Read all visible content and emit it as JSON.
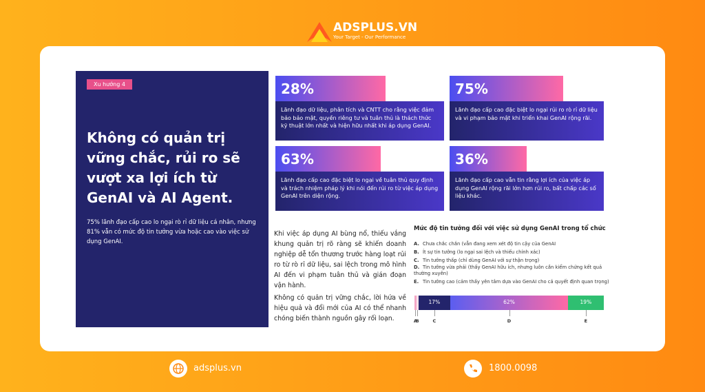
{
  "logo": {
    "brand": "ADSPLUS.VN",
    "tagline": "Your Target - Our Performance"
  },
  "panel": {
    "tag": "Xu hướng 4",
    "title": "Không có quản trị vững chắc, rủi ro sẽ vượt xa lợi ích từ GenAI và AI Agent.",
    "text": "75% lãnh đạo cấp cao lo ngại rò rỉ dữ liệu cá nhân, nhưng 81% vẫn có mức độ tin tưởng vừa hoặc cao vào việc sử dụng GenAI."
  },
  "stats": [
    {
      "number": "28%",
      "text": "Lãnh đạo dữ liệu, phân tích và CNTT cho rằng việc đảm bảo bảo mật, quyền riêng tư và tuân thủ là thách thức kỹ thuật lớn nhất và hiện hữu nhất khi áp dụng GenAI."
    },
    {
      "number": "75%",
      "text": "Lãnh đạo cấp cao đặc biệt lo ngại rủi ro rò rỉ dữ liệu và vi phạm bảo mật khi triển khai GenAI rộng rãi."
    },
    {
      "number": "63%",
      "text": "Lãnh đạo cấp cao đặc biệt lo ngại về tuân thủ quy định và trách nhiệm pháp lý khi nói đến rủi ro từ việc áp dụng GenAI trên diện rộng."
    },
    {
      "number": "36%",
      "text": "Lãnh đạo cấp cao vẫn tin rằng lợi ích của việc áp dụng GenAI rộng rãi lớn hơn rủi ro, bất chấp các số liệu khác."
    }
  ],
  "paragraphs": [
    "Khi việc áp dụng AI bùng nổ, thiếu vắng khung quản trị rõ ràng sẽ khiến doanh nghiệp dễ tổn thương trước hàng loạt rủi ro từ rò rỉ dữ liệu, sai lệch trong mô hình AI đến vi phạm tuân thủ và gián đoạn vận hành.",
    "Không có quản trị vững chắc, lời hứa về hiệu quả và đổi mới của AI có thể nhanh chóng biến thành nguồn gây rối loạn."
  ],
  "chart": {
    "title": "Mức độ tin tưởng đối với việc sử dụng GenAI trong tổ chức",
    "legend": [
      {
        "letter": "A.",
        "text": "Chưa chắc chắn (vẫn đang xem xét độ tin cậy của GenAI"
      },
      {
        "letter": "B.",
        "text": "Ít sự tin tưởng (lo ngại sai lệch và thiếu chính xác)"
      },
      {
        "letter": "C.",
        "text": "Tin tưởng thấp (chỉ dùng GenAI với sự thận trọng)"
      },
      {
        "letter": "D.",
        "text": "Tin tưởng vừa phải (thấy GenAI hữu ích, nhưng luôn cần kiểm chứng kết quả thường xuyên)"
      },
      {
        "letter": "E.",
        "text": "Tin tưởng cao (cảm thấy yên tâm dựa vào GenAI cho cả quyết định quan trọng)"
      }
    ],
    "categories": [
      "A",
      "B",
      "C",
      "D",
      "E"
    ],
    "values": [
      1,
      1,
      17,
      62,
      19
    ],
    "value_labels": [
      null,
      null,
      "17%",
      "62%",
      "19%"
    ],
    "colors": [
      "#f4a6c6",
      "#fbe3ec",
      "#23246b",
      "#5b5ef0",
      "#2fbf71"
    ]
  },
  "footer": {
    "website": "adsplus.vn",
    "phone": "1800.0098"
  }
}
